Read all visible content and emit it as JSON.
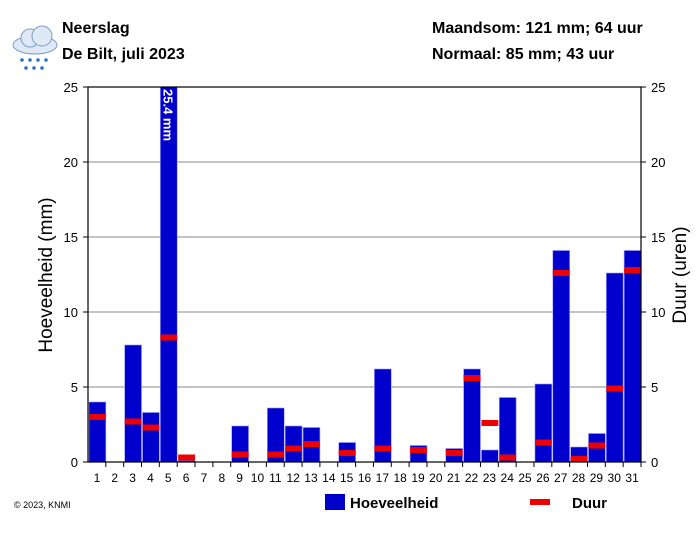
{
  "header": {
    "title": "Neerslag",
    "subtitle": "De Bilt, juli 2023",
    "month_sum": "Maandsom: 121 mm; 64 uur",
    "normal": "Normaal: 85 mm; 43 uur",
    "icon": "rain-cloud-icon"
  },
  "copyright": "© 2023, KNMI",
  "chart_data": {
    "type": "bar",
    "ylabel": "Hoeveelheid (mm)",
    "y2label": "Duur (uren)",
    "ylim": [
      0,
      25
    ],
    "y2lim": [
      0,
      25
    ],
    "yticks": [
      0,
      5,
      10,
      15,
      20,
      25
    ],
    "categories": [
      "1",
      "2",
      "3",
      "4",
      "5",
      "6",
      "7",
      "8",
      "9",
      "10",
      "11",
      "12",
      "13",
      "14",
      "15",
      "16",
      "17",
      "18",
      "19",
      "20",
      "21",
      "22",
      "23",
      "24",
      "25",
      "26",
      "27",
      "28",
      "29",
      "30",
      "31"
    ],
    "series": [
      {
        "name": "Hoeveelheid",
        "color": "#0000cc",
        "values": [
          4.0,
          0,
          7.8,
          3.3,
          25.4,
          0.1,
          0,
          0,
          2.4,
          0,
          3.6,
          2.4,
          2.3,
          0,
          1.3,
          0,
          6.2,
          0,
          1.1,
          0,
          0.9,
          6.2,
          0.8,
          4.3,
          0,
          5.2,
          14.1,
          1.0,
          1.9,
          12.6,
          14.1
        ]
      },
      {
        "name": "Duur",
        "color": "#ee0000",
        "values": [
          3.0,
          0,
          2.7,
          2.3,
          8.3,
          0.3,
          0,
          0,
          0.5,
          0,
          0.5,
          0.9,
          1.2,
          0,
          0.6,
          0,
          0.9,
          0,
          0.8,
          0,
          0.6,
          5.6,
          2.6,
          0.3,
          0,
          1.3,
          12.6,
          0.2,
          1.1,
          4.9,
          12.8
        ]
      }
    ],
    "annotation": "25.4 mm",
    "grid": true,
    "legend": "bottom"
  }
}
